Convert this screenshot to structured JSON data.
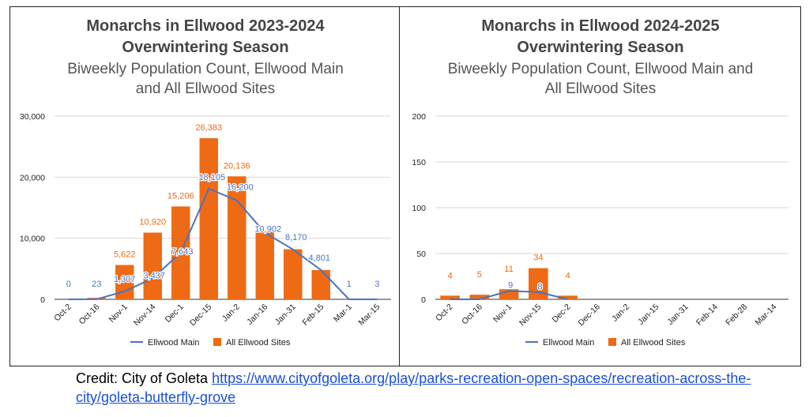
{
  "chart_data": [
    {
      "type": "bar",
      "title_line1": "Monarchs in Ellwood 2023-2024",
      "title_line2": "Overwintering Season",
      "subtitle_line1": "Biweekly Population Count, Ellwood Main",
      "subtitle_line2": "and All Ellwood Sites",
      "categories": [
        "Oct-2",
        "Oct-16",
        "Nov-1",
        "Nov-14",
        "Dec-1",
        "Dec-15",
        "Jan-2",
        "Jan-16",
        "Jan-31",
        "Feb-15",
        "Mar-1",
        "Mar-15"
      ],
      "series": [
        {
          "name": "Ellwood Main",
          "kind": "line",
          "color": "#4a72c4",
          "values": [
            0,
            23,
            1307,
            3437,
            7643,
            18105,
            16200,
            10902,
            8170,
            4801,
            1,
            3
          ],
          "labels": [
            "0",
            "23",
            "1,307",
            "3,437",
            "7,643",
            "18,105",
            "16,200",
            "10,902",
            "8,170",
            "4,801",
            "1",
            "3"
          ]
        },
        {
          "name": "All Ellwood Sites",
          "kind": "bar",
          "color": "#ee6a14",
          "values": [
            null,
            240,
            5622,
            10920,
            15206,
            26383,
            20136,
            11300,
            8200,
            4801,
            null,
            null
          ],
          "labels": [
            "",
            "",
            "5,622",
            "10,920",
            "15,206",
            "26,383",
            "20,136",
            "",
            "",
            "",
            "",
            ""
          ]
        }
      ],
      "ylim": [
        0,
        30000
      ],
      "yticks": [
        0,
        10000,
        20000,
        30000
      ],
      "ytick_labels": [
        "0",
        "10,000",
        "20,000",
        "30,000"
      ],
      "legend": "bottom-center",
      "grid": true
    },
    {
      "type": "bar",
      "title_line1": "Monarchs in Ellwood 2024-2025",
      "title_line2": "Overwintering Season",
      "subtitle_line1": "Biweekly Population Count, Ellwood Main and",
      "subtitle_line2": "All Ellwood Sites",
      "categories": [
        "Oct-2",
        "Oct-16",
        "Nov-1",
        "Nov-15",
        "Dec-2",
        "Dec-16",
        "Jan-2",
        "Jan-15",
        "Jan-31",
        "Feb-14",
        "Feb-28",
        "Mar-14"
      ],
      "series": [
        {
          "name": "Ellwood Main",
          "kind": "line",
          "color": "#4a72c4",
          "values": [
            0,
            0,
            9,
            8,
            0,
            null,
            null,
            null,
            null,
            null,
            null,
            null
          ],
          "labels": [
            "",
            "",
            "9",
            "8",
            "",
            "",
            "",
            "",
            "",
            "",
            "",
            ""
          ]
        },
        {
          "name": "All Ellwood Sites",
          "kind": "bar",
          "color": "#ee6a14",
          "values": [
            4,
            5,
            11,
            34,
            4,
            null,
            null,
            null,
            null,
            null,
            null,
            null
          ],
          "labels": [
            "4",
            "5",
            "11",
            "34",
            "4",
            "",
            "",
            "",
            "",
            "",
            "",
            ""
          ]
        }
      ],
      "ylim": [
        0,
        200
      ],
      "yticks": [
        0,
        50,
        100,
        150,
        200
      ],
      "ytick_labels": [
        "0",
        "50",
        "100",
        "150",
        "200"
      ],
      "legend": "bottom-center",
      "grid": true
    }
  ],
  "credit": {
    "prefix": "Credit: City of Goleta ",
    "link_text": "https://www.cityofgoleta.org/play/parks-recreation-open-spaces/recreation-across-the-city/goleta-butterfly-grove"
  },
  "colors": {
    "title": "#444444",
    "subtitle": "#555555",
    "axis_text": "#222222",
    "grid": "#d9d9d9"
  }
}
